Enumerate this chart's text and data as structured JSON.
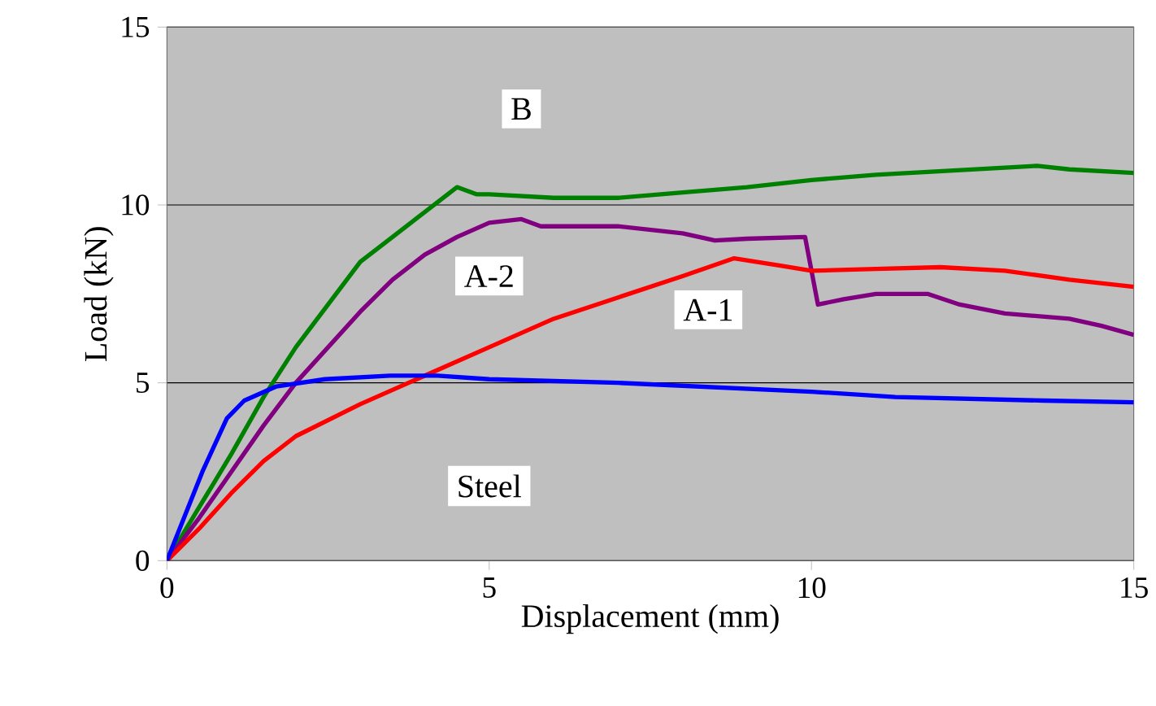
{
  "chart_data": {
    "type": "line",
    "xlabel": "Displacement (mm)",
    "ylabel": "Load (kN)",
    "xlim": [
      0,
      15
    ],
    "ylim": [
      0,
      15
    ],
    "xticks": [
      0,
      5,
      10,
      15
    ],
    "yticks": [
      0,
      5,
      10,
      15
    ],
    "grid": "y",
    "legend": false,
    "series": [
      {
        "name": "B",
        "color": "#008000",
        "x": [
          0,
          0.5,
          1,
          1.5,
          2,
          2.5,
          3,
          3.5,
          4,
          4.5,
          4.8,
          5,
          6,
          7,
          8,
          9,
          10,
          11,
          12,
          13,
          13.5,
          14,
          15
        ],
        "values": [
          0,
          1.5,
          3.0,
          4.6,
          6.0,
          7.2,
          8.4,
          9.1,
          9.8,
          10.5,
          10.3,
          10.3,
          10.2,
          10.2,
          10.35,
          10.5,
          10.7,
          10.85,
          10.95,
          11.05,
          11.1,
          11.0,
          10.9
        ]
      },
      {
        "name": "A-2",
        "color": "#800080",
        "x": [
          0,
          0.5,
          1,
          1.5,
          2,
          2.5,
          3,
          3.5,
          4,
          4.5,
          5,
          5.5,
          5.8,
          7,
          8,
          8.5,
          9,
          9.9,
          10.1,
          10.5,
          11,
          11.8,
          12.3,
          13,
          14,
          14.5,
          15
        ],
        "values": [
          0,
          1.2,
          2.5,
          3.8,
          5.0,
          6.0,
          7.0,
          7.9,
          8.6,
          9.1,
          9.5,
          9.6,
          9.4,
          9.4,
          9.2,
          9.0,
          9.05,
          9.1,
          7.2,
          7.35,
          7.5,
          7.5,
          7.2,
          6.95,
          6.8,
          6.6,
          6.35
        ]
      },
      {
        "name": "A-1",
        "color": "#ff0000",
        "x": [
          0,
          0.5,
          1,
          1.5,
          2,
          3,
          4,
          5,
          6,
          7,
          8,
          8.8,
          9.5,
          10,
          11,
          12,
          13,
          14,
          15
        ],
        "values": [
          0,
          0.9,
          1.9,
          2.8,
          3.5,
          4.4,
          5.2,
          6.0,
          6.8,
          7.4,
          8.0,
          8.5,
          8.3,
          8.15,
          8.2,
          8.25,
          8.15,
          7.9,
          7.7
        ]
      },
      {
        "name": "Steel",
        "color": "#0000ff",
        "x": [
          0,
          0.55,
          0.93,
          1.2,
          1.7,
          2.45,
          3.46,
          4.2,
          5,
          7,
          8.8,
          10,
          11.3,
          13.6,
          15
        ],
        "values": [
          0,
          2.5,
          4.0,
          4.5,
          4.9,
          5.1,
          5.2,
          5.2,
          5.1,
          5.0,
          4.85,
          4.75,
          4.6,
          4.5,
          4.45
        ]
      }
    ]
  }
}
